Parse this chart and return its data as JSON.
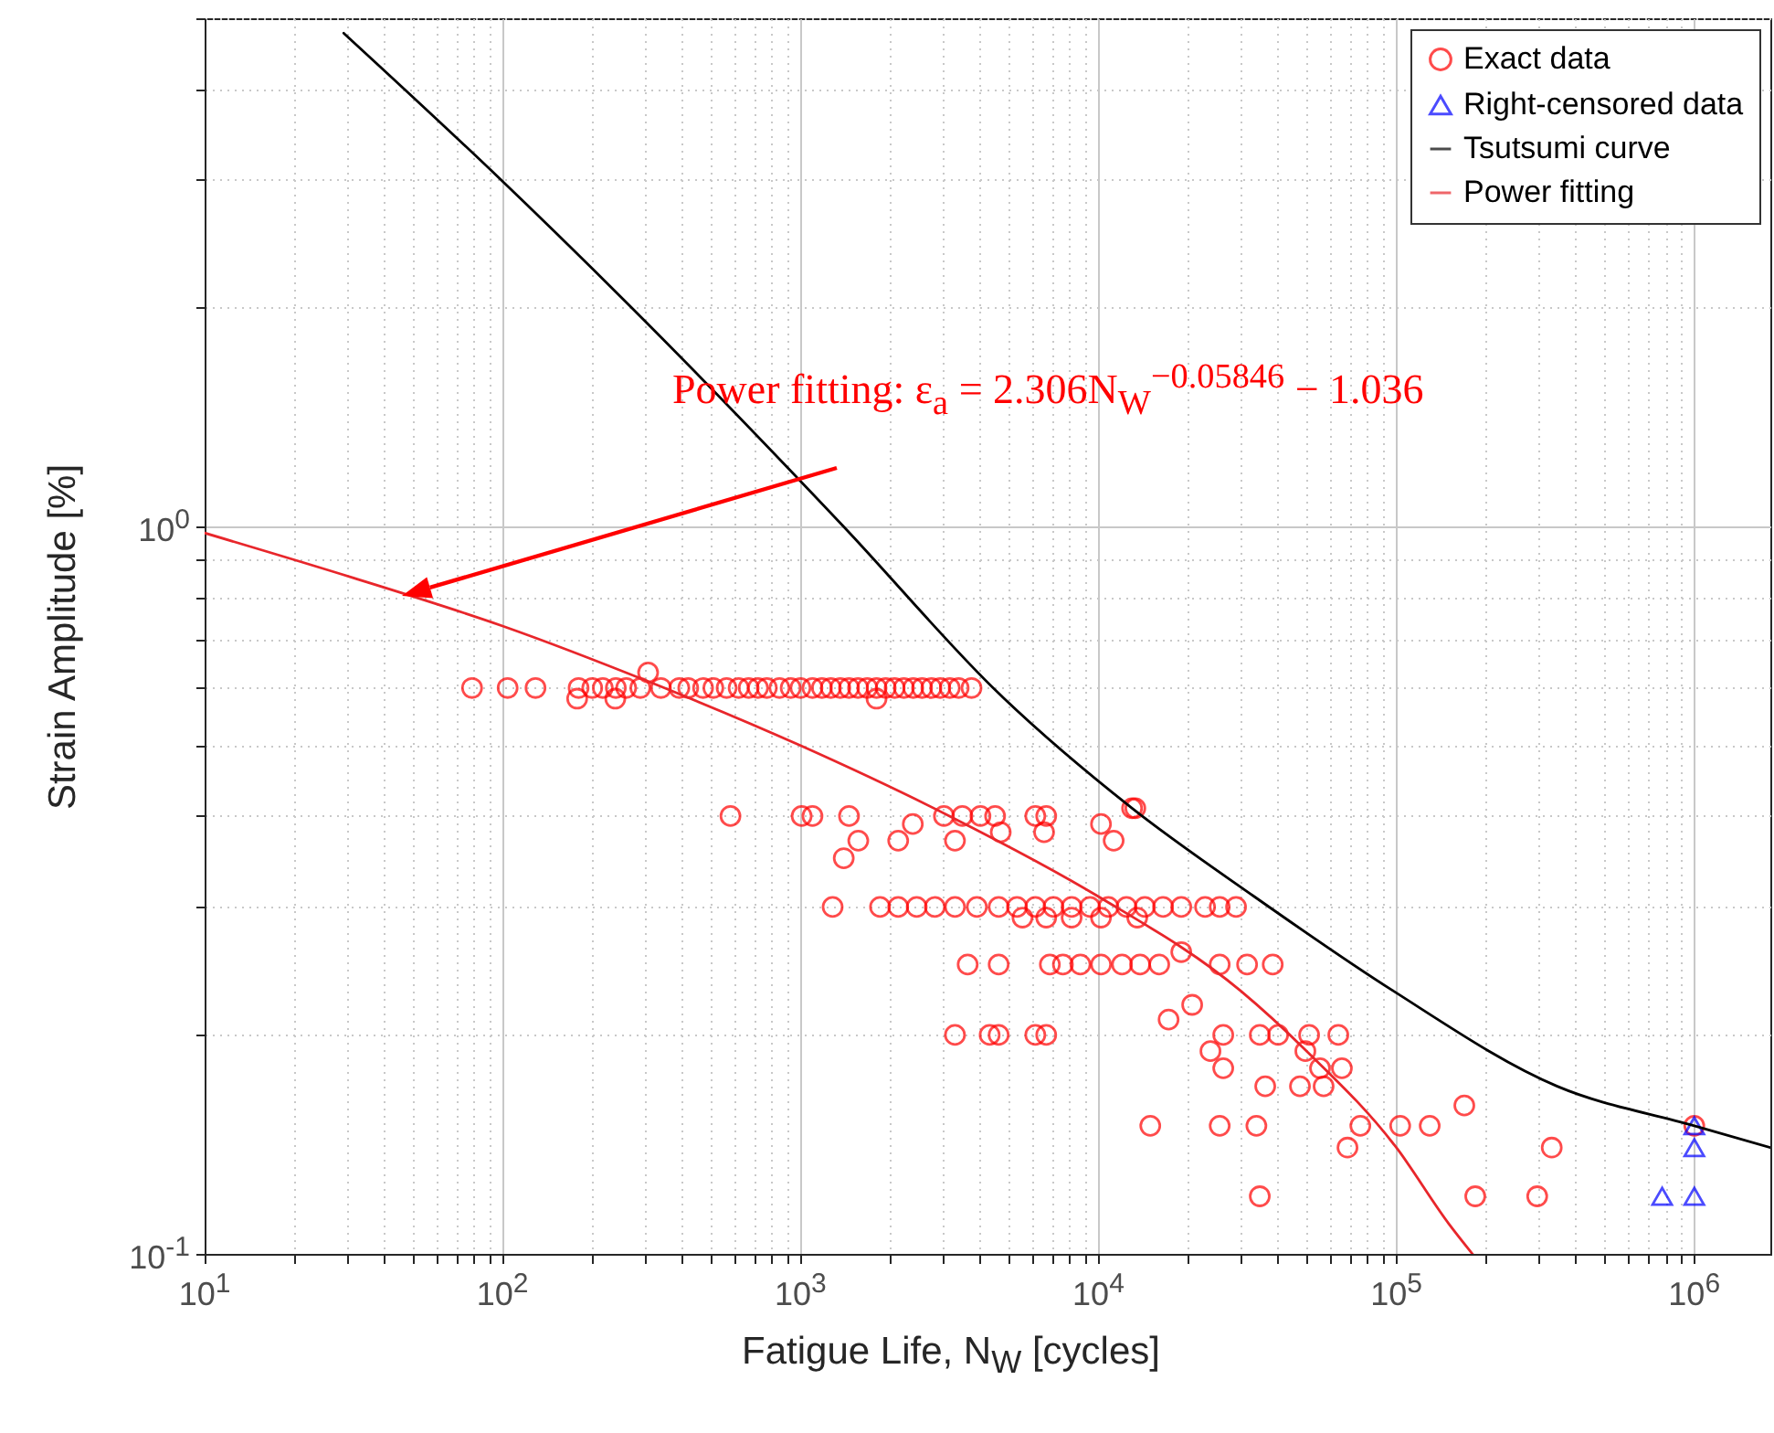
{
  "chart_data": {
    "type": "scatter",
    "ylabel": "Strain Amplitude [%]",
    "xlabel": "Fatigue Life, N$_{W}$ [cycles]",
    "log": "xy",
    "grid": true,
    "legend": "top right",
    "xlim": [
      10,
      1800000
    ],
    "ylim": [
      0.1,
      5
    ],
    "xticks": [
      {
        "value": 10,
        "label": "10$^{1}$"
      },
      {
        "value": 20,
        "label": null
      },
      {
        "value": 30,
        "label": null
      },
      {
        "value": 40,
        "label": null
      },
      {
        "value": 50,
        "label": null
      },
      {
        "value": 60,
        "label": null
      },
      {
        "value": 70,
        "label": null
      },
      {
        "value": 80,
        "label": null
      },
      {
        "value": 90,
        "label": null
      },
      {
        "value": 100,
        "label": "10$^{2}$"
      },
      {
        "value": 200,
        "label": null
      },
      {
        "value": 300,
        "label": null
      },
      {
        "value": 400,
        "label": null
      },
      {
        "value": 500,
        "label": null
      },
      {
        "value": 600,
        "label": null
      },
      {
        "value": 700,
        "label": null
      },
      {
        "value": 800,
        "label": null
      },
      {
        "value": 900,
        "label": null
      },
      {
        "value": 1000,
        "label": "10$^{3}$"
      },
      {
        "value": 2000,
        "label": null
      },
      {
        "value": 3000,
        "label": null
      },
      {
        "value": 4000,
        "label": null
      },
      {
        "value": 5000,
        "label": null
      },
      {
        "value": 6000,
        "label": null
      },
      {
        "value": 7000,
        "label": null
      },
      {
        "value": 8000,
        "label": null
      },
      {
        "value": 9000,
        "label": null
      },
      {
        "value": 10000,
        "label": "10$^{4}$"
      },
      {
        "value": 20000,
        "label": null
      },
      {
        "value": 30000,
        "label": null
      },
      {
        "value": 40000,
        "label": null
      },
      {
        "value": 50000,
        "label": null
      },
      {
        "value": 60000,
        "label": null
      },
      {
        "value": 70000,
        "label": null
      },
      {
        "value": 80000,
        "label": null
      },
      {
        "value": 90000,
        "label": null
      },
      {
        "value": 100000,
        "label": "10$^{5}$"
      },
      {
        "value": 200000,
        "label": null
      },
      {
        "value": 300000,
        "label": null
      },
      {
        "value": 400000,
        "label": null
      },
      {
        "value": 500000,
        "label": null
      },
      {
        "value": 600000,
        "label": null
      },
      {
        "value": 700000,
        "label": null
      },
      {
        "value": 800000,
        "label": null
      },
      {
        "value": 900000,
        "label": null
      },
      {
        "value": 1000000,
        "label": "10$^{6}$"
      }
    ],
    "yticks": [
      {
        "value": 0.1,
        "label": "10$^{-1}$"
      },
      {
        "value": 0.2,
        "label": null
      },
      {
        "value": 0.3,
        "label": null
      },
      {
        "value": 0.4,
        "label": null
      },
      {
        "value": 0.5,
        "label": null
      },
      {
        "value": 0.6,
        "label": null
      },
      {
        "value": 0.7,
        "label": null
      },
      {
        "value": 0.8,
        "label": null
      },
      {
        "value": 0.9,
        "label": null
      },
      {
        "value": 1,
        "label": "10$^{0}$"
      },
      {
        "value": 2,
        "label": null
      },
      {
        "value": 3,
        "label": null
      },
      {
        "value": 4,
        "label": null
      },
      {
        "value": 5,
        "label": null
      }
    ],
    "annotations": [
      "Power fitting: ε$_{a}$ = 2.306N$_{W}$$^{−0.05846}$ − 1.036"
    ],
    "series": [
      {
        "name": "Exact data",
        "color": "#ff0000",
        "marker": "circle",
        "x": [
          79,
          104,
          129,
          180,
          200,
          217,
          240,
          260,
          290,
          340,
          392,
          420,
          471,
          510,
          565,
          620,
          670,
          720,
          771,
          850,
          927,
          1000,
          1097,
          1180,
          1264,
          1360,
          1455,
          1560,
          1675,
          1800,
          1932,
          2070,
          2223,
          2390,
          2559,
          2750,
          2944,
          3170,
          3396,
          3750,
          308,
          178,
          239,
          1800,
          582,
          1009,
          1097,
          1455,
          1563,
          1397,
          2128,
          2382,
          3030,
          3493,
          4018,
          4500,
          3300,
          4700,
          6140,
          6680,
          6570,
          10200,
          11250,
          12970,
          13300,
          1282,
          1849,
          2128,
          2455,
          2825,
          3300,
          3908,
          4626,
          5330,
          6140,
          7065,
          8130,
          9370,
          10800,
          12420,
          14310,
          16480,
          18970,
          22800,
          25530,
          28970,
          5560,
          6680,
          8130,
          10200,
          13500,
          3640,
          4626,
          6870,
          7600,
          8700,
          10200,
          12000,
          13800,
          16000,
          18970,
          25530,
          31550,
          38460,
          3300,
          4314,
          4626,
          6140,
          6680,
          17200,
          20640,
          23770,
          26240,
          26240,
          34800,
          36300,
          40090,
          47470,
          49500,
          50950,
          57000,
          55430,
          63850,
          65640,
          14930,
          25530,
          33900,
          34800,
          68550,
          75700,
          103000,
          129400,
          169100,
          184000,
          297000,
          332300,
          1000000
        ],
        "values": [
          0.6,
          0.6,
          0.6,
          0.6,
          0.6,
          0.6,
          0.6,
          0.6,
          0.6,
          0.6,
          0.6,
          0.6,
          0.6,
          0.6,
          0.6,
          0.6,
          0.6,
          0.6,
          0.6,
          0.6,
          0.6,
          0.6,
          0.6,
          0.6,
          0.6,
          0.6,
          0.6,
          0.6,
          0.6,
          0.6,
          0.6,
          0.6,
          0.6,
          0.6,
          0.6,
          0.6,
          0.6,
          0.6,
          0.6,
          0.6,
          0.63,
          0.58,
          0.58,
          0.58,
          0.4,
          0.4,
          0.4,
          0.4,
          0.37,
          0.35,
          0.37,
          0.39,
          0.4,
          0.4,
          0.4,
          0.4,
          0.37,
          0.38,
          0.4,
          0.4,
          0.38,
          0.39,
          0.37,
          0.41,
          0.41,
          0.3,
          0.3,
          0.3,
          0.3,
          0.3,
          0.3,
          0.3,
          0.3,
          0.3,
          0.3,
          0.3,
          0.3,
          0.3,
          0.3,
          0.3,
          0.3,
          0.3,
          0.3,
          0.3,
          0.3,
          0.3,
          0.29,
          0.29,
          0.29,
          0.29,
          0.29,
          0.25,
          0.25,
          0.25,
          0.25,
          0.25,
          0.25,
          0.25,
          0.25,
          0.25,
          0.26,
          0.25,
          0.25,
          0.25,
          0.2,
          0.2,
          0.2,
          0.2,
          0.2,
          0.21,
          0.22,
          0.19,
          0.18,
          0.2,
          0.2,
          0.17,
          0.2,
          0.17,
          0.19,
          0.2,
          0.17,
          0.18,
          0.2,
          0.18,
          0.15,
          0.15,
          0.15,
          0.12,
          0.14,
          0.15,
          0.15,
          0.15,
          0.16,
          0.12,
          0.12,
          0.14,
          0.15
        ]
      },
      {
        "name": "Right-censored data",
        "color": "#0000ff",
        "marker": "triangle",
        "x": [
          1000000,
          1000000,
          780000,
          1000000
        ],
        "values": [
          0.15,
          0.14,
          0.12,
          0.12
        ]
      },
      {
        "type": "line",
        "name": "Tsutsumi curve",
        "color": "#000000",
        "x": [
          29.3,
          97,
          268,
          1396,
          4624,
          12970,
          33340,
          97500,
          346700,
          1000000,
          1800000
        ],
        "values": [
          4.77,
          3.02,
          2.01,
          1.0,
          0.59,
          0.41,
          0.31,
          0.23,
          0.17,
          0.15,
          0.14
        ]
      },
      {
        "type": "line",
        "name": "Power fitting",
        "color": "#e8262b",
        "x": [
          10,
          31.6,
          100,
          316,
          1000,
          3162,
          10000,
          30000,
          50000,
          100000,
          150000,
          180000
        ],
        "values": [
          0.98,
          0.85,
          0.73,
          0.61,
          0.5,
          0.4,
          0.31,
          0.23,
          0.19,
          0.14,
          0.11,
          0.1
        ]
      }
    ]
  }
}
